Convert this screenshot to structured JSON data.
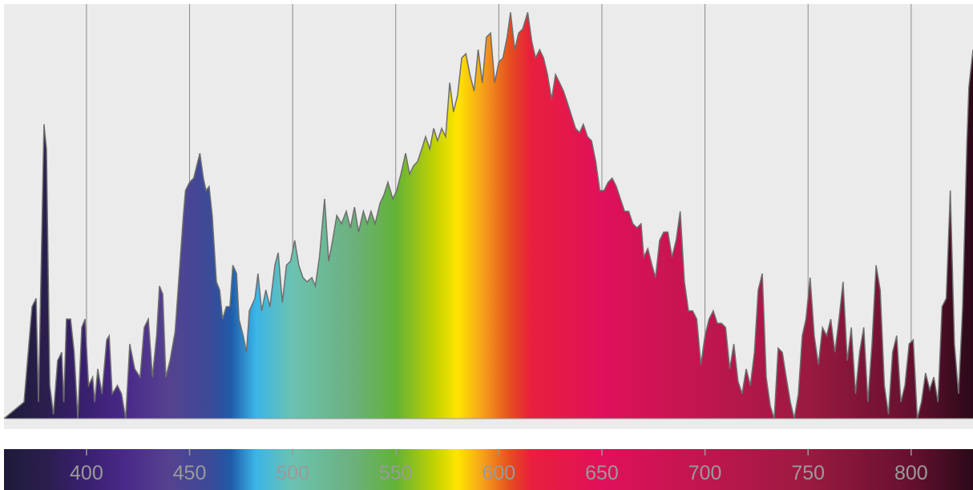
{
  "chart_data": {
    "type": "area",
    "x": [
      360,
      369.7,
      373.6,
      375.6,
      376.7,
      379.4,
      380.6,
      382.2,
      384,
      386,
      388,
      389,
      390.3,
      392.3,
      394,
      395.8,
      397.7,
      399.3,
      401,
      403,
      404,
      405.5,
      407.5,
      409.8,
      411,
      412.5,
      415,
      417,
      419,
      421,
      423.4,
      426,
      428,
      430,
      432,
      434,
      435.4,
      437,
      438.5,
      440.5,
      443,
      445,
      447,
      448,
      450,
      452,
      453.5,
      455,
      456.7,
      458,
      459.5,
      461,
      463,
      464.6,
      466,
      467.8,
      469.6,
      471,
      472.8,
      474,
      476,
      477.6,
      479,
      481.7,
      483.2,
      485,
      487,
      489,
      491.4,
      493,
      495,
      497,
      499,
      501,
      503,
      505,
      507,
      509.3,
      511,
      513,
      515.5,
      517.5,
      519.4,
      521.4,
      523.7,
      526,
      528,
      530,
      532,
      534.3,
      536.2,
      538,
      540,
      542.4,
      544.3,
      546.2,
      548.6,
      550.5,
      552.5,
      554.8,
      556.7,
      558.7,
      560.6,
      562.6,
      564.5,
      566.5,
      568.4,
      570.3,
      572.3,
      574.2,
      576.2,
      578,
      580,
      582,
      584,
      586,
      588,
      590,
      592,
      594,
      596,
      598,
      600,
      602,
      604,
      605.7,
      607.7,
      609.6,
      611.6,
      614,
      616,
      617.8,
      619.8,
      621.7,
      623.6,
      625.6,
      627.5,
      629.5,
      631.4,
      633.4,
      635.3,
      637.2,
      639.2,
      641,
      643,
      645,
      647,
      649,
      651,
      653,
      655,
      657,
      659,
      661,
      663,
      665,
      667,
      669,
      670.3,
      672.3,
      674.3,
      676,
      678,
      680,
      682,
      684,
      686,
      688,
      690,
      692,
      694,
      696,
      698,
      700,
      702,
      704,
      706,
      708,
      710,
      712,
      714,
      716,
      718,
      720,
      722,
      724,
      725.8,
      727.8,
      729.7,
      731.7,
      733.6,
      735.5,
      737.5,
      739.4,
      741.4,
      743.3,
      745.3,
      747.2,
      749,
      751,
      753,
      755,
      757,
      759,
      761,
      763,
      765,
      767,
      769,
      771,
      773,
      775,
      777,
      779,
      781,
      783,
      785,
      787,
      789,
      791,
      793,
      795,
      797,
      799,
      801,
      803,
      805,
      807,
      809,
      811,
      813,
      815,
      817,
      819,
      821,
      823,
      825,
      827,
      828,
      830
    ],
    "values": [
      0,
      4,
      27,
      29,
      4,
      71,
      65,
      8,
      1,
      14,
      16,
      4,
      24,
      24,
      16,
      0,
      22,
      24,
      8,
      10,
      4,
      12,
      6,
      19,
      20,
      6,
      8,
      6,
      0,
      18,
      12,
      10,
      22,
      24,
      10,
      20,
      32,
      30,
      10,
      14,
      21,
      35,
      49,
      55,
      57,
      58,
      61,
      64,
      58,
      55,
      56,
      49,
      33,
      31,
      24,
      27,
      27,
      37,
      35,
      24,
      20,
      16,
      26,
      29,
      35,
      26,
      31,
      27,
      37,
      40,
      28,
      37,
      38,
      43,
      37,
      34,
      33,
      34,
      32,
      39,
      53,
      38,
      43,
      49,
      47,
      50,
      46,
      51,
      45,
      50,
      47,
      50,
      47,
      52,
      54,
      57,
      53,
      55,
      59,
      64,
      59,
      61,
      62,
      65,
      68,
      65,
      70,
      67,
      70,
      68,
      81,
      74,
      78,
      87,
      88,
      83,
      79,
      89,
      81,
      92,
      93,
      81,
      86,
      87,
      92,
      98,
      89,
      93,
      94,
      98,
      91,
      87,
      89,
      87,
      83,
      77,
      83,
      81,
      79,
      76,
      73,
      70,
      69,
      71,
      68,
      67,
      62,
      55,
      55,
      57,
      58,
      56,
      53,
      50,
      50,
      47,
      46,
      47,
      39,
      41,
      37,
      34,
      43,
      45,
      45,
      39,
      43,
      50,
      33,
      26,
      26,
      24,
      13,
      20,
      24,
      26,
      23,
      23,
      22,
      12,
      18,
      9,
      6,
      12,
      8,
      16,
      31,
      35,
      10,
      3,
      0,
      17,
      16,
      10,
      4,
      0,
      6,
      20,
      24,
      34,
      20,
      13,
      22,
      20,
      24,
      16,
      24,
      33,
      14,
      22,
      6,
      16,
      22,
      4,
      18,
      37,
      31,
      8,
      1,
      16,
      20,
      4,
      8,
      18,
      19,
      0,
      4,
      11,
      7,
      10,
      4,
      27,
      29,
      55,
      18,
      6,
      27,
      66,
      80,
      89
    ],
    "line_color": "#6e6e6e",
    "background": "#ebebeb",
    "grid_color": "#8a8a8a",
    "gradient": [
      {
        "value": 360,
        "color": "#1e1a38"
      },
      {
        "value": 380,
        "color": "#2a1e4e"
      },
      {
        "value": 400,
        "color": "#3a2070"
      },
      {
        "value": 420,
        "color": "#4a2a8a"
      },
      {
        "value": 440,
        "color": "#55428f"
      },
      {
        "value": 460,
        "color": "#3b4a98"
      },
      {
        "value": 470,
        "color": "#1f5aa8"
      },
      {
        "value": 482,
        "color": "#3ab5e8"
      },
      {
        "value": 500,
        "color": "#6cc2b0"
      },
      {
        "value": 530,
        "color": "#6cb07c"
      },
      {
        "value": 550,
        "color": "#62b236"
      },
      {
        "value": 570,
        "color": "#c8d400"
      },
      {
        "value": 580,
        "color": "#ffe600"
      },
      {
        "value": 592,
        "color": "#f6a21b"
      },
      {
        "value": 605,
        "color": "#e5501e"
      },
      {
        "value": 615,
        "color": "#e8203c"
      },
      {
        "value": 650,
        "color": "#e0105a"
      },
      {
        "value": 700,
        "color": "#c0164f"
      },
      {
        "value": 750,
        "color": "#9a1a40"
      },
      {
        "value": 800,
        "color": "#661030"
      },
      {
        "value": 830,
        "color": "#2a0a18"
      }
    ],
    "xlim": [
      360,
      830
    ],
    "ylim": [
      0,
      100
    ],
    "xticks": [
      400,
      450,
      500,
      550,
      600,
      650,
      700,
      750,
      800
    ],
    "grid": true
  }
}
